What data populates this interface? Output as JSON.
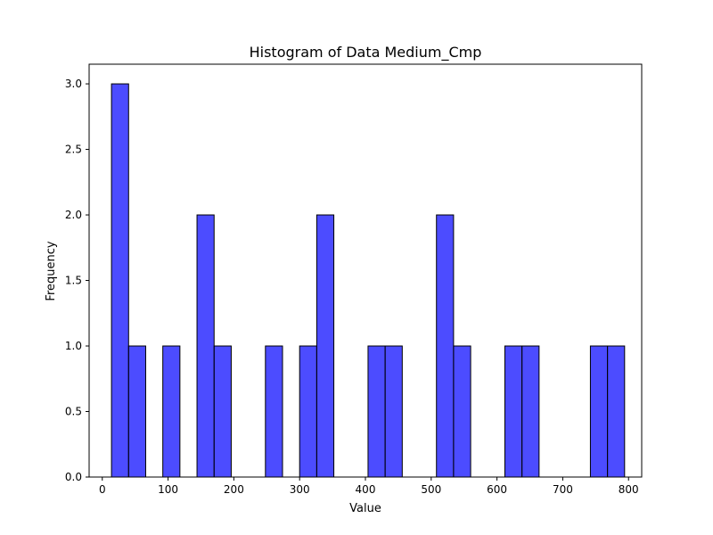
{
  "chart_data": {
    "type": "bar",
    "title": "Histogram of Data Medium_Cmp",
    "xlabel": "Value",
    "ylabel": "Frequency",
    "xlim": [
      -20,
      820
    ],
    "ylim": [
      0,
      3.15
    ],
    "xticks": [
      0,
      100,
      200,
      300,
      400,
      500,
      600,
      700,
      800
    ],
    "xtick_labels": [
      "0",
      "100",
      "200",
      "300",
      "400",
      "500",
      "600",
      "700",
      "800"
    ],
    "yticks": [
      0,
      0.5,
      1.0,
      1.5,
      2.0,
      2.5,
      3.0
    ],
    "ytick_labels": [
      "0.0",
      "0.5",
      "1.0",
      "1.5",
      "2.0",
      "2.5",
      "3.0"
    ],
    "grid": false,
    "bar_color": "#0000ff",
    "bar_opacity": 0.7,
    "edge_color": "#000000",
    "bins": [
      {
        "start": 14,
        "end": 40,
        "count": 3
      },
      {
        "start": 40,
        "end": 66,
        "count": 1
      },
      {
        "start": 66,
        "end": 92,
        "count": 0
      },
      {
        "start": 92,
        "end": 118,
        "count": 1
      },
      {
        "start": 118,
        "end": 144,
        "count": 0
      },
      {
        "start": 144,
        "end": 170,
        "count": 2
      },
      {
        "start": 170,
        "end": 196,
        "count": 1
      },
      {
        "start": 196,
        "end": 222,
        "count": 0
      },
      {
        "start": 222,
        "end": 248,
        "count": 0
      },
      {
        "start": 248,
        "end": 274,
        "count": 1
      },
      {
        "start": 274,
        "end": 300,
        "count": 0
      },
      {
        "start": 300,
        "end": 326,
        "count": 1
      },
      {
        "start": 326,
        "end": 352,
        "count": 2
      },
      {
        "start": 352,
        "end": 378,
        "count": 0
      },
      {
        "start": 378,
        "end": 404,
        "count": 0
      },
      {
        "start": 404,
        "end": 430,
        "count": 1
      },
      {
        "start": 430,
        "end": 456,
        "count": 1
      },
      {
        "start": 456,
        "end": 482,
        "count": 0
      },
      {
        "start": 482,
        "end": 508,
        "count": 0
      },
      {
        "start": 508,
        "end": 534,
        "count": 2
      },
      {
        "start": 534,
        "end": 560,
        "count": 1
      },
      {
        "start": 560,
        "end": 586,
        "count": 0
      },
      {
        "start": 586,
        "end": 612,
        "count": 0
      },
      {
        "start": 612,
        "end": 638,
        "count": 1
      },
      {
        "start": 638,
        "end": 664,
        "count": 1
      },
      {
        "start": 664,
        "end": 690,
        "count": 0
      },
      {
        "start": 690,
        "end": 716,
        "count": 0
      },
      {
        "start": 716,
        "end": 742,
        "count": 0
      },
      {
        "start": 742,
        "end": 768,
        "count": 1
      },
      {
        "start": 768,
        "end": 794,
        "count": 1
      }
    ]
  }
}
